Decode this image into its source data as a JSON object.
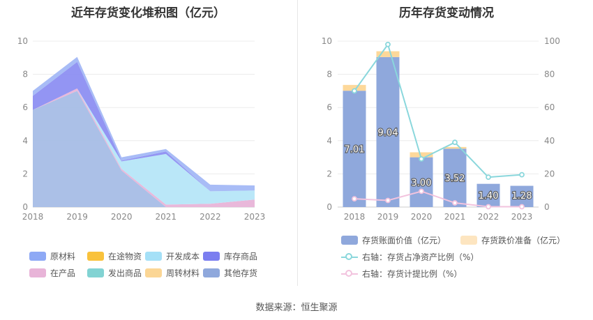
{
  "left": {
    "title": "近年存货变化堆积图（亿元）",
    "legend": [
      {
        "name": "原材料",
        "color": "#8ea9f5"
      },
      {
        "name": "在途物资",
        "color": "#f9c23c"
      },
      {
        "name": "开发成本",
        "color": "#a5e0f7"
      },
      {
        "name": "库存商品",
        "color": "#7b7ef0"
      },
      {
        "name": "在产品",
        "color": "#e8b4d8"
      },
      {
        "name": "发出商品",
        "color": "#82d3d3"
      },
      {
        "name": "周转材料",
        "color": "#fbd695"
      },
      {
        "name": "其他存货",
        "color": "#8fa8dc"
      }
    ]
  },
  "right": {
    "title": "历年存货变动情况",
    "legend": [
      {
        "name": "存货账面价值（亿元）",
        "color": "#8fa8dc",
        "kind": "box"
      },
      {
        "name": "存货跌价准备（亿元）",
        "color": "#fde5c0",
        "kind": "box"
      },
      {
        "name": "右轴：存货占净资产比例（%）",
        "color": "#8ad7dc",
        "kind": "line"
      },
      {
        "name": "右轴：存货计提比例（%）",
        "color": "#f2c3de",
        "kind": "line"
      }
    ]
  },
  "source": "数据来源：恒生聚源",
  "chart_data": [
    {
      "type": "area",
      "title": "近年存货变化堆积图（亿元）",
      "x": [
        "2018",
        "2019",
        "2020",
        "2021",
        "2022",
        "2023"
      ],
      "ylim": [
        0,
        10
      ],
      "yticks": [
        0,
        2,
        4,
        6,
        8,
        10
      ],
      "series": [
        {
          "name": "其他存货",
          "values": [
            5.85,
            7.0,
            2.2,
            0.0,
            0.0,
            0.0
          ],
          "color": "#a7bde6"
        },
        {
          "name": "在产品",
          "values": [
            0.0,
            0.15,
            0.1,
            0.15,
            0.2,
            0.45
          ],
          "color": "#e8b4d8"
        },
        {
          "name": "开发成本",
          "values": [
            0.0,
            0.0,
            0.45,
            3.05,
            0.75,
            0.55
          ],
          "color": "#b6e6f8"
        },
        {
          "name": "库存商品",
          "values": [
            0.85,
            1.6,
            0.05,
            0.15,
            0.0,
            0.0
          ],
          "color": "#8d8ff2"
        },
        {
          "name": "原材料",
          "values": [
            0.3,
            0.3,
            0.2,
            0.15,
            0.4,
            0.3
          ],
          "color": "#a3b8f6"
        }
      ]
    },
    {
      "type": "bar",
      "title": "历年存货变动情况",
      "categories": [
        "2018",
        "2019",
        "2020",
        "2021",
        "2022",
        "2023"
      ],
      "ylim": [
        0,
        10
      ],
      "y2lim": [
        0,
        100
      ],
      "yticks": [
        0,
        2,
        4,
        6,
        8,
        10
      ],
      "y2ticks": [
        0,
        20,
        40,
        60,
        80,
        100
      ],
      "series": [
        {
          "name": "存货账面价值（亿元）",
          "values": [
            7.01,
            9.04,
            3.0,
            3.52,
            1.4,
            1.28
          ],
          "labels": [
            "7.01",
            "9.04",
            "3.00",
            "3.52",
            "1.40",
            "1.28"
          ],
          "color": "#8fa8dc"
        },
        {
          "name": "存货跌价准备（亿元）",
          "values": [
            0.35,
            0.35,
            0.3,
            0.1,
            0.0,
            0.0
          ],
          "color": "#fdd89a"
        },
        {
          "name": "右轴：存货占净资产比例（%）",
          "values": [
            70,
            98,
            29,
            39,
            18,
            19.5
          ],
          "color": "#8ad7dc",
          "axis": "right"
        },
        {
          "name": "右轴：存货计提比例（%）",
          "values": [
            5,
            4,
            9.5,
            2.5,
            0.2,
            0.2
          ],
          "color": "#f2c3de",
          "axis": "right"
        }
      ]
    }
  ]
}
